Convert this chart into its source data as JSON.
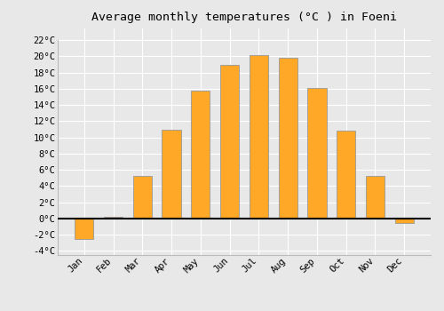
{
  "title": "Average monthly temperatures (°C ) in Foeni",
  "months": [
    "Jan",
    "Feb",
    "Mar",
    "Apr",
    "May",
    "Jun",
    "Jul",
    "Aug",
    "Sep",
    "Oct",
    "Nov",
    "Dec"
  ],
  "values": [
    -2.5,
    0.2,
    5.2,
    11.0,
    15.8,
    19.0,
    20.2,
    19.8,
    16.1,
    10.8,
    5.2,
    -0.5
  ],
  "bar_color": "#FFA726",
  "bar_edge_color": "#999999",
  "ylim": [
    -4.5,
    23.5
  ],
  "yticks": [
    -4,
    -2,
    0,
    2,
    4,
    6,
    8,
    10,
    12,
    14,
    16,
    18,
    20,
    22
  ],
  "background_color": "#e8e8e8",
  "plot_bg_color": "#e8e8e8",
  "grid_color": "#ffffff",
  "title_fontsize": 9.5,
  "tick_fontsize": 7.5,
  "font_family": "monospace"
}
